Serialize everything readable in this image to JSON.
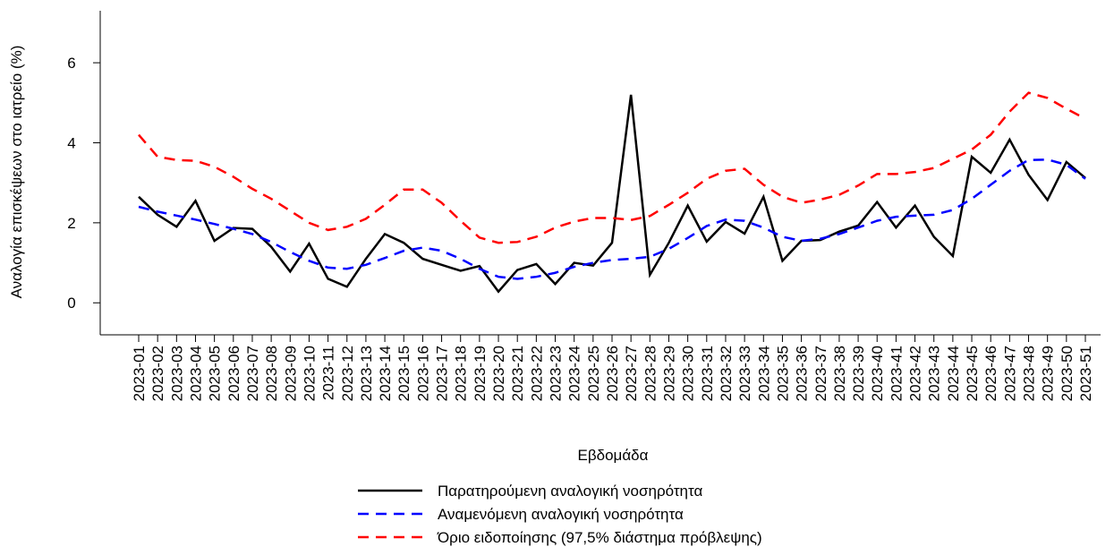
{
  "chart_data": {
    "type": "line",
    "x_label": "Εβδομάδα",
    "y_label": "Αναλογία επισκέψεων στο ιατρείο (%)",
    "categories": [
      "2023-01",
      "2023-02",
      "2023-03",
      "2023-04",
      "2023-05",
      "2023-06",
      "2023-07",
      "2023-08",
      "2023-09",
      "2023-10",
      "2023-11",
      "2023-12",
      "2023-13",
      "2023-14",
      "2023-15",
      "2023-16",
      "2023-17",
      "2023-18",
      "2023-19",
      "2023-20",
      "2023-21",
      "2023-22",
      "2023-23",
      "2023-24",
      "2023-25",
      "2023-26",
      "2023-27",
      "2023-28",
      "2023-29",
      "2023-30",
      "2023-31",
      "2023-32",
      "2023-33",
      "2023-34",
      "2023-35",
      "2023-36",
      "2023-37",
      "2023-38",
      "2023-39",
      "2023-40",
      "2023-41",
      "2023-42",
      "2023-43",
      "2023-44",
      "2023-45",
      "2023-46",
      "2023-47",
      "2023-48",
      "2023-49",
      "2023-50",
      "2023-51"
    ],
    "ylim": [
      -0.8,
      7.3
    ],
    "yticks": [
      0,
      2,
      4,
      6
    ],
    "legend": "bottom",
    "series": [
      {
        "name": "Παρατηρούμενη αναλογική νοσηρότητα",
        "color": "#000000",
        "linestyle": "solid",
        "values": [
          2.65,
          2.2,
          1.9,
          2.55,
          1.55,
          1.87,
          1.85,
          1.4,
          0.78,
          1.48,
          0.6,
          0.4,
          1.1,
          1.72,
          1.5,
          1.1,
          0.95,
          0.8,
          0.92,
          0.28,
          0.82,
          0.97,
          0.47,
          1.0,
          0.93,
          1.5,
          5.2,
          0.7,
          1.5,
          2.43,
          1.53,
          2.02,
          1.73,
          2.65,
          1.05,
          1.55,
          1.57,
          1.78,
          1.93,
          2.52,
          1.88,
          2.43,
          1.65,
          1.17,
          3.65,
          3.25,
          4.08,
          3.2,
          2.57,
          3.52,
          3.12
        ]
      },
      {
        "name": "Αναμενόμενη αναλογική νοσηρότητα",
        "color": "#0000ff",
        "linestyle": "dashed",
        "values": [
          2.4,
          2.28,
          2.18,
          2.08,
          1.97,
          1.85,
          1.72,
          1.52,
          1.27,
          1.05,
          0.88,
          0.85,
          0.95,
          1.12,
          1.3,
          1.38,
          1.3,
          1.1,
          0.85,
          0.65,
          0.6,
          0.65,
          0.75,
          0.9,
          1.0,
          1.07,
          1.1,
          1.15,
          1.35,
          1.62,
          1.92,
          2.08,
          2.05,
          1.88,
          1.65,
          1.55,
          1.6,
          1.72,
          1.88,
          2.05,
          2.15,
          2.18,
          2.2,
          2.32,
          2.6,
          2.95,
          3.3,
          3.57,
          3.58,
          3.45,
          3.1
        ]
      },
      {
        "name": "Όριο ειδοποίησης (97,5% διάστημα πρόβλεψης)",
        "color": "#ff0000",
        "linestyle": "dashed",
        "values": [
          4.2,
          3.65,
          3.57,
          3.55,
          3.4,
          3.15,
          2.85,
          2.6,
          2.3,
          2.0,
          1.82,
          1.9,
          2.1,
          2.45,
          2.83,
          2.83,
          2.5,
          2.05,
          1.63,
          1.5,
          1.52,
          1.65,
          1.88,
          2.03,
          2.12,
          2.12,
          2.07,
          2.17,
          2.45,
          2.75,
          3.1,
          3.3,
          3.35,
          2.95,
          2.65,
          2.5,
          2.58,
          2.7,
          2.93,
          3.22,
          3.22,
          3.27,
          3.37,
          3.6,
          3.83,
          4.2,
          4.78,
          5.25,
          5.12,
          4.85,
          4.6
        ]
      }
    ]
  }
}
